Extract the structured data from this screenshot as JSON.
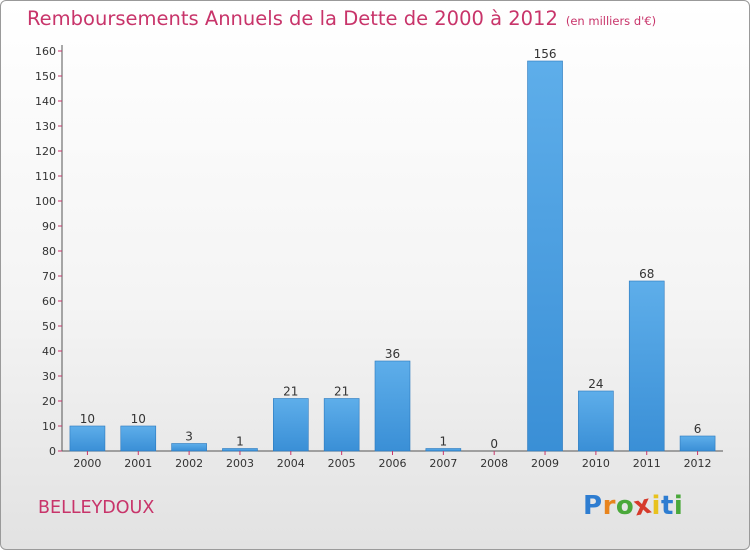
{
  "header": {
    "title": "Remboursements Annuels de la Dette de 2000 à 2012",
    "unit": "(en milliers d'€)"
  },
  "commune": "BELLEYDOUX",
  "logo": {
    "letters": [
      "P",
      "r",
      "o",
      "x",
      "i",
      "t",
      "i"
    ],
    "colors": [
      "#2e7dd1",
      "#e8841d",
      "#4aa83a",
      "#d63a2b",
      "#e8c21d",
      "#2e7dd1",
      "#4aa83a"
    ]
  },
  "chart_data": {
    "type": "bar",
    "title": "Remboursements Annuels de la Dette de 2000 à 2012",
    "ylabel": "",
    "xlabel": "",
    "categories": [
      "2000",
      "2001",
      "2002",
      "2003",
      "2004",
      "2005",
      "2006",
      "2007",
      "2008",
      "2009",
      "2010",
      "2011",
      "2012"
    ],
    "values": [
      10,
      10,
      3,
      1,
      21,
      21,
      36,
      1,
      0,
      156,
      24,
      68,
      6
    ],
    "ylim": [
      0,
      160
    ],
    "yticks": [
      0,
      10,
      20,
      30,
      40,
      50,
      60,
      70,
      80,
      90,
      100,
      110,
      120,
      130,
      140,
      150,
      160
    ],
    "grid": false,
    "colors": {
      "bar": "#3a8fd6",
      "bar_light": "#5eaeea",
      "axis": "#555555",
      "tick": "#c8346a"
    }
  }
}
